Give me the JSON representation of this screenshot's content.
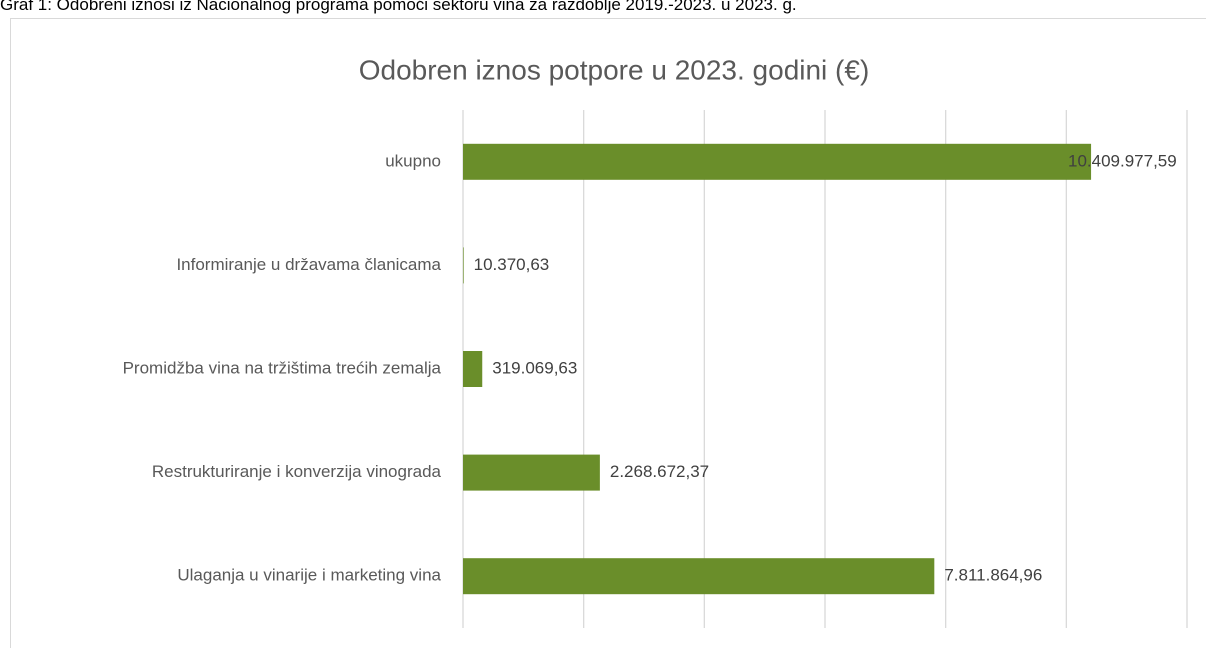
{
  "caption": "Graf 1: Odobreni iznosi iz Nacionalnog programa pomoći sektoru vina za razdoblje 2019.-2023. u 2023. g.",
  "chart_data": {
    "type": "bar",
    "orientation": "horizontal",
    "title": "Odobren iznos potpore u 2023. godini (€)",
    "categories": [
      "ukupno",
      "Informiranje u državama članicama",
      "Promidžba vina na tržištima trećih zemalja",
      "Restrukturiranje i konverzija vinograda",
      "Ulaganja u vinarije i marketing vina"
    ],
    "values": [
      10409977.59,
      10370.63,
      319069.63,
      2268672.37,
      7811864.96
    ],
    "value_labels": [
      "10.409.977,59",
      "10.370,63",
      "319.069,63",
      "2.268.672,37",
      "7.811.864,96"
    ],
    "color": "#6a8e2a",
    "xlim": [
      0,
      12000000
    ],
    "xticks": [
      0,
      2000000,
      4000000,
      6000000,
      8000000,
      10000000,
      12000000
    ],
    "grid": true
  }
}
